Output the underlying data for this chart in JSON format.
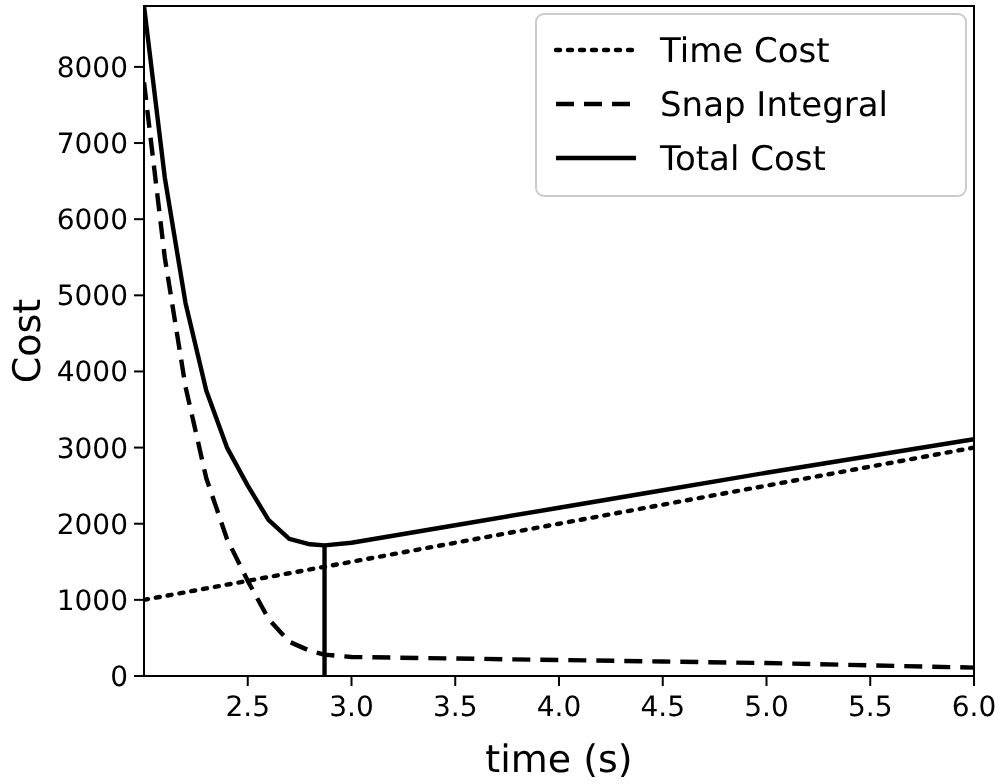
{
  "chart_data": {
    "type": "line",
    "xlabel": "time (s)",
    "ylabel": "Cost",
    "xlim": [
      2.0,
      6.0
    ],
    "ylim": [
      0,
      8800
    ],
    "xticks": [
      2.5,
      {
        "value": 3,
        "label": "3.0"
      },
      3.5,
      {
        "value": 4,
        "label": "4.0"
      },
      4.5,
      {
        "value": 5,
        "label": "5.0"
      },
      5.5,
      {
        "value": 6,
        "label": "6.0"
      }
    ],
    "yticks": [
      0,
      1000,
      2000,
      3000,
      4000,
      5000,
      6000,
      7000,
      8000
    ],
    "x": [
      2.0,
      2.1,
      2.2,
      2.3,
      2.4,
      2.5,
      2.6,
      2.7,
      2.8,
      2.87,
      3.0,
      3.5,
      4.0,
      4.5,
      5.0,
      5.5,
      6.0
    ],
    "series": [
      {
        "name": "Time Cost",
        "color": "#000000",
        "line_style": "dotted",
        "values": [
          1000,
          1050,
          1100,
          1150,
          1200,
          1250,
          1300,
          1350,
          1400,
          1435,
          1500,
          1750,
          2000,
          2250,
          2500,
          2750,
          3000
        ]
      },
      {
        "name": "Snap Integral",
        "color": "#000000",
        "line_style": "dashed",
        "values": [
          7800,
          5500,
          3800,
          2600,
          1800,
          1250,
          750,
          450,
          330,
          280,
          250,
          230,
          210,
          190,
          170,
          140,
          110
        ]
      },
      {
        "name": "Total Cost",
        "color": "#000000",
        "line_style": "solid",
        "values": [
          8800,
          6550,
          4900,
          3750,
          3000,
          2500,
          2050,
          1800,
          1730,
          1715,
          1750,
          1980,
          2210,
          2440,
          2670,
          2890,
          3110
        ]
      },
      {
        "color": "#000000",
        "line_style": "solid",
        "x": [
          2.87,
          2.87
        ],
        "values": [
          0,
          1715
        ]
      }
    ],
    "legend": "top right",
    "grid": false,
    "marker": "none"
  }
}
